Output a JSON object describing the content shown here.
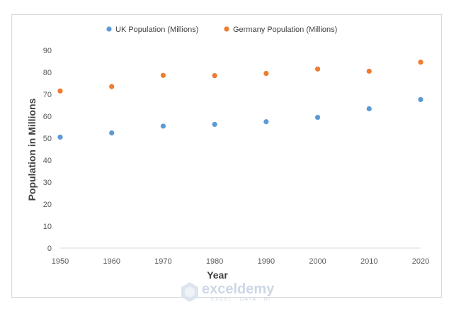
{
  "chart_data": {
    "type": "scatter",
    "xlabel": "Year",
    "ylabel": "Population in Millions",
    "xlim": [
      1950,
      2020
    ],
    "ylim": [
      0,
      90
    ],
    "xticks": [
      "1950",
      "1960",
      "1970",
      "1980",
      "1990",
      "2000",
      "2010",
      "2020"
    ],
    "yticks": [
      "0",
      "10",
      "20",
      "30",
      "40",
      "50",
      "60",
      "70",
      "80",
      "90"
    ],
    "grid": false,
    "legend_position": "top",
    "x": [
      1950,
      1960,
      1970,
      1980,
      1990,
      2000,
      2010,
      2020
    ],
    "series": [
      {
        "name": "UK Population (Millions)",
        "color": "#5b9bd5",
        "values": [
          50.5,
          52.4,
          55.5,
          56.3,
          57.5,
          59.5,
          63.4,
          67.6
        ]
      },
      {
        "name": "Germany Population (Millions)",
        "color": "#ed7d31",
        "values": [
          71.5,
          73.5,
          78.6,
          78.5,
          79.5,
          81.5,
          80.5,
          84.6
        ]
      }
    ]
  },
  "watermark": {
    "brand": "exceldemy",
    "tagline": "EXCEL · DATA · BI",
    "icon": "exceldemy-logo-icon"
  }
}
